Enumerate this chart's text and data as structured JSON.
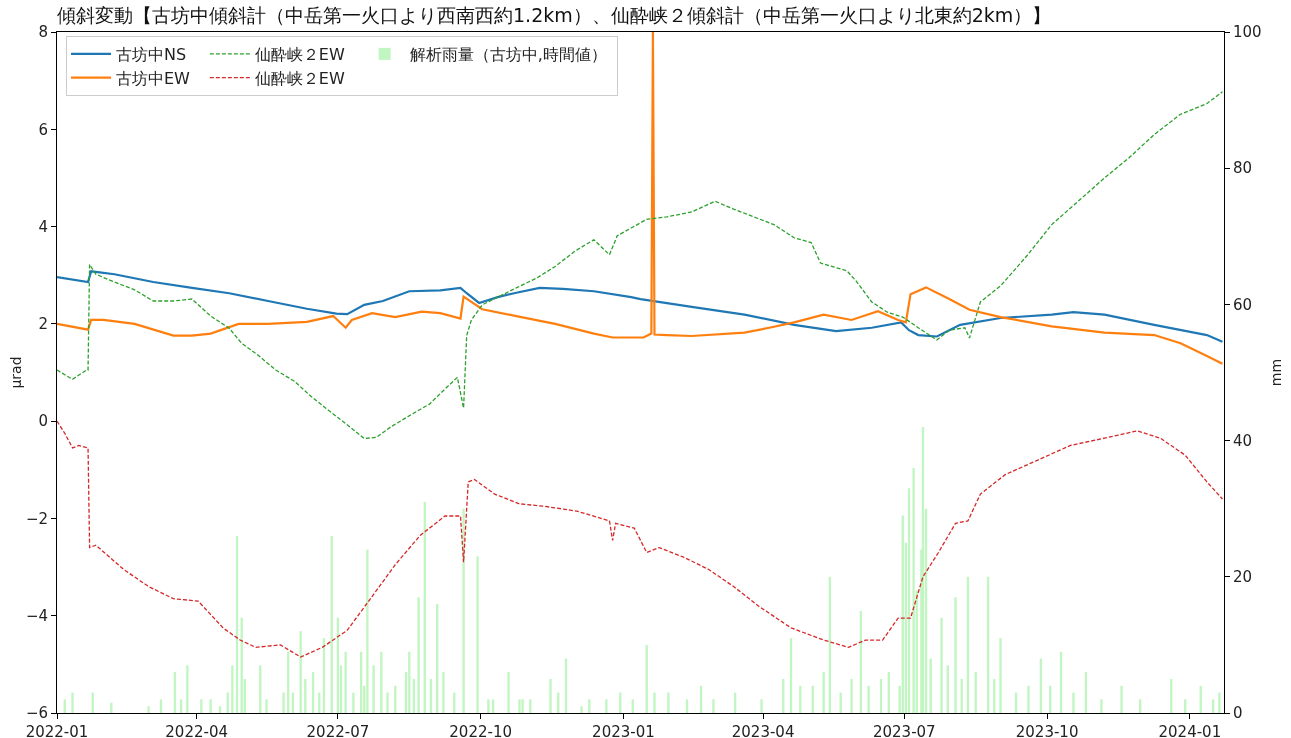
{
  "chart_data": {
    "type": "line",
    "title": "傾斜変動【古坊中傾斜計（中岳第一火口より西南西約1.2km）、仙酔峡２傾斜計（中岳第一火口より北東約2km）】",
    "ylabel": "μrad",
    "y2label": "mm",
    "xlim": [
      "2022-01-01",
      "2024-01-23"
    ],
    "xticks": [
      "2022-01",
      "2022-04",
      "2022-07",
      "2022-10",
      "2023-01",
      "2023-04",
      "2023-07",
      "2023-10",
      "2024-01"
    ],
    "ylim": [
      -6,
      8
    ],
    "yticks": [
      -6,
      -4,
      -2,
      0,
      2,
      4,
      6,
      8
    ],
    "y2lim": [
      0,
      100
    ],
    "y2ticks": [
      0,
      20,
      40,
      60,
      80,
      100
    ],
    "legend": "top left",
    "series": [
      {
        "name": "古坊中NS",
        "color": "#1f77b4",
        "line_style": "solid",
        "x": [
          "2022-01-01",
          "2022-01-21",
          "2022-01-23",
          "2022-02-07",
          "2022-03-04",
          "2022-03-29",
          "2022-04-22",
          "2022-05-17",
          "2022-06-11",
          "2022-06-30",
          "2022-07-07",
          "2022-07-18",
          "2022-07-30",
          "2022-08-16",
          "2022-09-05",
          "2022-09-18",
          "2022-09-22",
          "2022-09-30",
          "2022-10-12",
          "2022-10-24",
          "2022-11-08",
          "2022-11-23",
          "2022-12-13",
          "2023-01-06",
          "2023-01-12",
          "2023-02-14",
          "2023-03-20",
          "2023-04-21",
          "2023-05-18",
          "2023-06-10",
          "2023-06-29",
          "2023-07-04",
          "2023-07-10",
          "2023-07-22",
          "2023-08-06",
          "2023-09-01",
          "2023-10-04",
          "2023-10-18",
          "2023-11-07",
          "2023-12-09",
          "2024-01-12",
          "2024-01-22"
        ],
        "values": [
          2.96,
          2.86,
          3.08,
          3.02,
          2.86,
          2.74,
          2.63,
          2.47,
          2.31,
          2.21,
          2.2,
          2.39,
          2.47,
          2.67,
          2.69,
          2.74,
          2.63,
          2.43,
          2.55,
          2.64,
          2.74,
          2.72,
          2.67,
          2.55,
          2.51,
          2.35,
          2.19,
          1.98,
          1.85,
          1.92,
          2.03,
          1.87,
          1.77,
          1.74,
          1.98,
          2.12,
          2.19,
          2.24,
          2.19,
          1.98,
          1.77,
          1.63
        ]
      },
      {
        "name": "古坊中EW",
        "color": "#ff7f0e",
        "line_style": "solid",
        "x": [
          "2022-01-01",
          "2022-01-21",
          "2022-01-23",
          "2022-01-31",
          "2022-02-20",
          "2022-03-17",
          "2022-03-29",
          "2022-04-10",
          "2022-04-28",
          "2022-05-17",
          "2022-06-11",
          "2022-06-28",
          "2022-07-06",
          "2022-07-10",
          "2022-07-23",
          "2022-08-07",
          "2022-08-24",
          "2022-09-05",
          "2022-09-18",
          "2022-09-20",
          "2022-10-02",
          "2022-10-24",
          "2022-11-18",
          "2022-12-13",
          "2022-12-25",
          "2023-01-14",
          "2023-01-19",
          "2023-01-20",
          "2023-01-21",
          "2023-01-29",
          "2023-02-14",
          "2023-03-20",
          "2023-04-05",
          "2023-04-21",
          "2023-05-10",
          "2023-05-28",
          "2023-06-14",
          "2023-06-27",
          "2023-07-02",
          "2023-07-05",
          "2023-07-15",
          "2023-07-30",
          "2023-08-12",
          "2023-09-01",
          "2023-10-04",
          "2023-11-07",
          "2023-12-09",
          "2023-12-26",
          "2024-01-12",
          "2024-01-22"
        ],
        "values": [
          2.0,
          1.88,
          2.08,
          2.08,
          2.0,
          1.76,
          1.76,
          1.8,
          2.0,
          2.0,
          2.04,
          2.16,
          1.92,
          2.08,
          2.22,
          2.14,
          2.25,
          2.22,
          2.11,
          2.56,
          2.3,
          2.16,
          2.0,
          1.8,
          1.72,
          1.72,
          1.8,
          8,
          1.78,
          1.77,
          1.75,
          1.82,
          1.92,
          2.03,
          2.19,
          2.08,
          2.26,
          2.08,
          2.03,
          2.61,
          2.75,
          2.51,
          2.29,
          2.14,
          1.95,
          1.82,
          1.77,
          1.6,
          1.34,
          1.18
        ]
      },
      {
        "name": "仙酔峡２EW",
        "color": "#2ca02c",
        "line_style": "dashed",
        "x": [
          "2022-01-01",
          "2022-01-11",
          "2022-01-20",
          "2022-01-21",
          "2022-01-22",
          "2022-01-26",
          "2022-02-07",
          "2022-02-20",
          "2022-03-04",
          "2022-03-17",
          "2022-03-29",
          "2022-04-10",
          "2022-04-22",
          "2022-04-30",
          "2022-05-10",
          "2022-05-22",
          "2022-06-03",
          "2022-06-14",
          "2022-06-23",
          "2022-07-06",
          "2022-07-18",
          "2022-07-26",
          "2022-08-04",
          "2022-08-16",
          "2022-08-29",
          "2022-09-08",
          "2022-09-16",
          "2022-09-20",
          "2022-09-22",
          "2022-09-25",
          "2022-10-02",
          "2022-10-12",
          "2022-10-24",
          "2022-11-06",
          "2022-11-18",
          "2022-12-01",
          "2022-12-13",
          "2022-12-23",
          "2022-12-28",
          "2023-01-06",
          "2023-01-16",
          "2023-01-29",
          "2023-02-14",
          "2023-03-01",
          "2023-03-13",
          "2023-03-26",
          "2023-04-08",
          "2023-04-21",
          "2023-05-02",
          "2023-05-08",
          "2023-05-25",
          "2023-05-31",
          "2023-06-10",
          "2023-06-20",
          "2023-06-30",
          "2023-07-10",
          "2023-07-22",
          "2023-07-30",
          "2023-08-09",
          "2023-08-12",
          "2023-08-19",
          "2023-09-01",
          "2023-09-18",
          "2023-10-04",
          "2023-10-21",
          "2023-11-07",
          "2023-11-23",
          "2023-12-09",
          "2023-12-26",
          "2024-01-12",
          "2024-01-22"
        ],
        "values": [
          1.05,
          0.86,
          1.05,
          1.05,
          3.22,
          3.02,
          2.86,
          2.7,
          2.47,
          2.47,
          2.51,
          2.16,
          1.91,
          1.6,
          1.37,
          1.05,
          0.82,
          0.5,
          0.27,
          -0.05,
          -0.36,
          -0.33,
          -0.12,
          0.11,
          0.35,
          0.66,
          0.9,
          0.27,
          1.76,
          2.08,
          2.39,
          2.55,
          2.74,
          2.94,
          3.18,
          3.5,
          3.73,
          3.42,
          3.81,
          3.97,
          4.15,
          4.2,
          4.3,
          4.52,
          4.36,
          4.2,
          4.04,
          3.77,
          3.67,
          3.25,
          3.09,
          2.88,
          2.45,
          2.24,
          2.14,
          1.92,
          1.67,
          1.87,
          1.92,
          1.71,
          2.45,
          2.78,
          3.4,
          4.04,
          4.52,
          5.0,
          5.42,
          5.89,
          6.31,
          6.53,
          6.77
        ]
      },
      {
        "name": "仙酔峡２EW",
        "color": "#d62728",
        "line_style": "dashed",
        "x": [
          "2022-01-01",
          "2022-01-06",
          "2022-01-11",
          "2022-01-15",
          "2022-01-21",
          "2022-01-22",
          "2022-01-26",
          "2022-02-13",
          "2022-03-01",
          "2022-03-17",
          "2022-04-02",
          "2022-04-18",
          "2022-04-29",
          "2022-05-09",
          "2022-05-25",
          "2022-06-07",
          "2022-06-21",
          "2022-07-07",
          "2022-07-22",
          "2022-08-07",
          "2022-08-23",
          "2022-09-08",
          "2022-09-18",
          "2022-09-20",
          "2022-09-23",
          "2022-09-27",
          "2022-10-10",
          "2022-10-26",
          "2022-11-11",
          "2022-12-02",
          "2022-12-23",
          "2022-12-25",
          "2022-12-27",
          "2023-01-08",
          "2023-01-16",
          "2023-01-24",
          "2023-02-09",
          "2023-02-25",
          "2023-03-13",
          "2023-03-29",
          "2023-04-19",
          "2023-05-10",
          "2023-05-26",
          "2023-06-06",
          "2023-06-17",
          "2023-06-27",
          "2023-07-05",
          "2023-07-13",
          "2023-07-23",
          "2023-08-03",
          "2023-08-11",
          "2023-08-19",
          "2023-09-04",
          "2023-09-25",
          "2023-10-16",
          "2023-11-07",
          "2023-11-28",
          "2023-12-13",
          "2023-12-29",
          "2024-01-12",
          "2024-01-22"
        ],
        "values": [
          0,
          -0.25,
          -0.55,
          -0.5,
          -0.55,
          -2.6,
          -2.55,
          -3.05,
          -3.4,
          -3.65,
          -3.7,
          -4.25,
          -4.5,
          -4.65,
          -4.6,
          -4.85,
          -4.65,
          -4.3,
          -3.65,
          -2.95,
          -2.35,
          -1.95,
          -1.95,
          -2.9,
          -1.25,
          -1.2,
          -1.5,
          -1.7,
          -1.75,
          -1.85,
          -2.05,
          -2.45,
          -2.1,
          -2.2,
          -2.7,
          -2.6,
          -2.8,
          -3.05,
          -3.4,
          -3.8,
          -4.25,
          -4.5,
          -4.65,
          -4.5,
          -4.5,
          -4.05,
          -4.05,
          -3.2,
          -2.7,
          -2.1,
          -2.05,
          -1.5,
          -1.1,
          -0.8,
          -0.5,
          -0.35,
          -0.2,
          -0.35,
          -0.7,
          -1.25,
          -1.6
        ]
      },
      {
        "name": "解析雨量（古坊中,時間値）",
        "color": "#c1f5c1",
        "type": "bar",
        "axis": "y2",
        "x": [
          "2022-01-06",
          "2022-01-11",
          "2022-01-24",
          "2022-02-05",
          "2022-03-01",
          "2022-03-09",
          "2022-03-18",
          "2022-03-22",
          "2022-03-26",
          "2022-04-04",
          "2022-04-10",
          "2022-04-16",
          "2022-04-21",
          "2022-04-24",
          "2022-04-27",
          "2022-04-30",
          "2022-05-02",
          "2022-05-12",
          "2022-05-16",
          "2022-05-27",
          "2022-05-30",
          "2022-06-02",
          "2022-06-07",
          "2022-06-10",
          "2022-06-15",
          "2022-06-19",
          "2022-06-22",
          "2022-06-27",
          "2022-07-01",
          "2022-07-03",
          "2022-07-06",
          "2022-07-11",
          "2022-07-16",
          "2022-07-18",
          "2022-07-20",
          "2022-07-24",
          "2022-07-29",
          "2022-08-02",
          "2022-08-07",
          "2022-08-14",
          "2022-08-16",
          "2022-08-19",
          "2022-08-22",
          "2022-08-26",
          "2022-08-30",
          "2022-09-03",
          "2022-09-07",
          "2022-09-14",
          "2022-09-20",
          "2022-09-29",
          "2022-10-06",
          "2022-10-09",
          "2022-10-19",
          "2022-10-26",
          "2022-10-28",
          "2022-11-02",
          "2022-11-15",
          "2022-11-20",
          "2022-11-25",
          "2022-12-05",
          "2022-12-10",
          "2022-12-21",
          "2022-12-30",
          "2023-01-07",
          "2023-01-16",
          "2023-01-21",
          "2023-01-30",
          "2023-02-11",
          "2023-02-20",
          "2023-02-28",
          "2023-03-14",
          "2023-03-31",
          "2023-04-14",
          "2023-04-19",
          "2023-04-25",
          "2023-05-03",
          "2023-05-10",
          "2023-05-14",
          "2023-05-21",
          "2023-05-28",
          "2023-06-03",
          "2023-06-08",
          "2023-06-16",
          "2023-06-21",
          "2023-06-28",
          "2023-06-30",
          "2023-07-02",
          "2023-07-04",
          "2023-07-07",
          "2023-07-09",
          "2023-07-12",
          "2023-07-13",
          "2023-07-15",
          "2023-07-18",
          "2023-07-25",
          "2023-07-29",
          "2023-08-03",
          "2023-08-07",
          "2023-08-11",
          "2023-08-16",
          "2023-08-24",
          "2023-08-28",
          "2023-09-01",
          "2023-09-11",
          "2023-09-19",
          "2023-09-27",
          "2023-10-03",
          "2023-10-10",
          "2023-10-18",
          "2023-10-26",
          "2023-11-05",
          "2023-11-18",
          "2023-11-30",
          "2023-12-20",
          "2023-12-29",
          "2024-01-08",
          "2024-01-16",
          "2024-01-20"
        ],
        "values": [
          2,
          3,
          3,
          1.5,
          1,
          2,
          6,
          2,
          7,
          2,
          2,
          1,
          3,
          7,
          26,
          14,
          5,
          7,
          2,
          3,
          9,
          3,
          12,
          5,
          6,
          3,
          11,
          26,
          14,
          7,
          9,
          3,
          9,
          4,
          24,
          7,
          9,
          3,
          4,
          6,
          9,
          5,
          17,
          31,
          5,
          16,
          6,
          3,
          30,
          23,
          2,
          2,
          6,
          2,
          2,
          2,
          5,
          3,
          8,
          1,
          2,
          2,
          3,
          2,
          10,
          3,
          3,
          2,
          4,
          2,
          3,
          2,
          5,
          11,
          4,
          4,
          6,
          20,
          3,
          5,
          15,
          4,
          5,
          6,
          4,
          29,
          25,
          33,
          36,
          18,
          24,
          42,
          30,
          8,
          14,
          7,
          17,
          5,
          20,
          6,
          20,
          5,
          11,
          3,
          4,
          8,
          4,
          9,
          3,
          6,
          2,
          4,
          2,
          5,
          2,
          4,
          2,
          3
        ]
      }
    ]
  }
}
